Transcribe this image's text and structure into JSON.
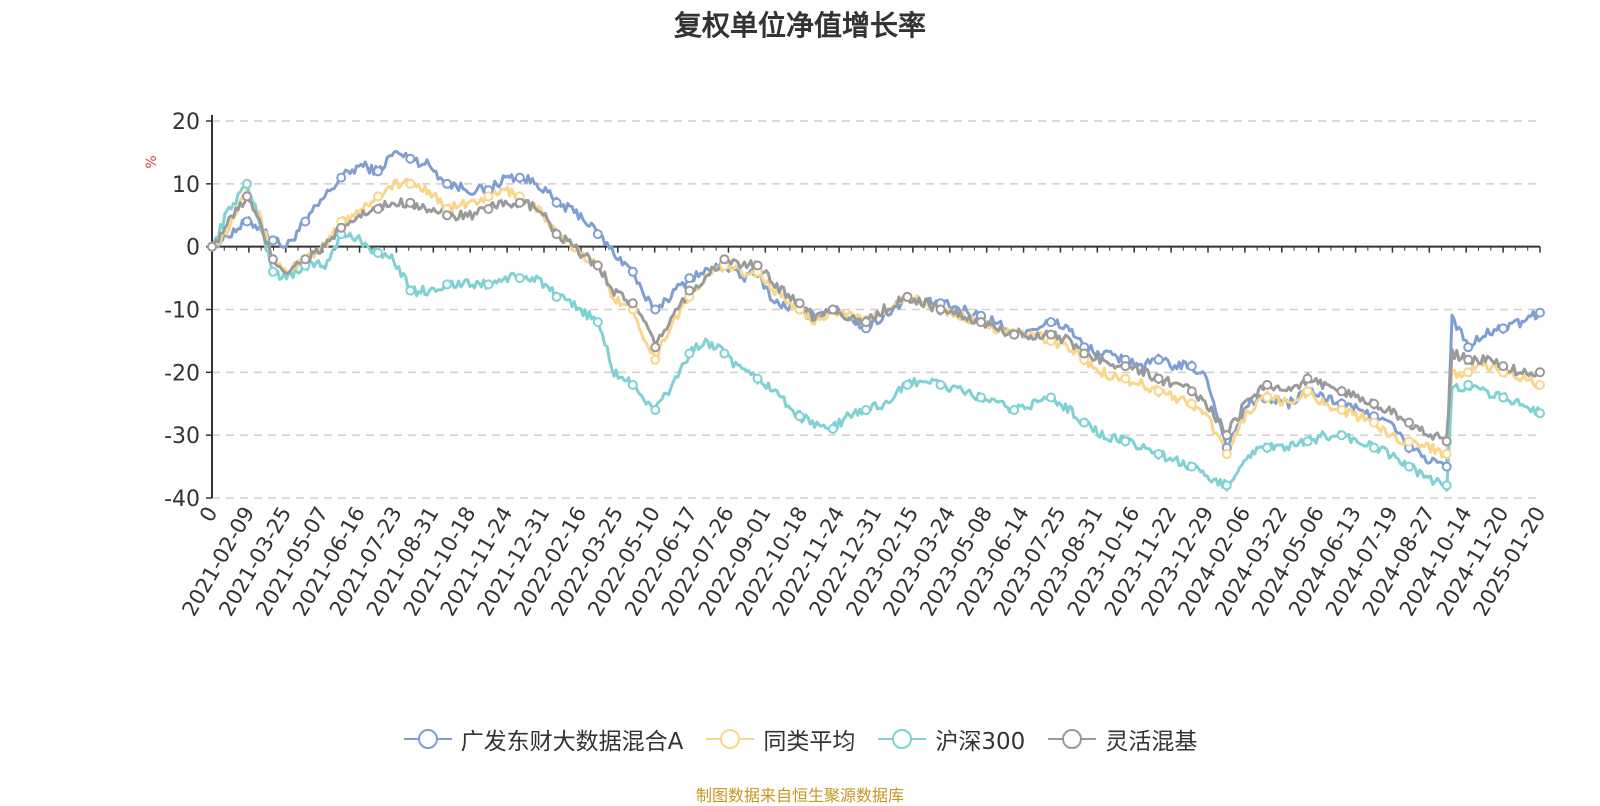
{
  "chart_data": {
    "type": "line",
    "title": "复权单位净值增长率",
    "ylabel": "%",
    "ylim": [
      -40,
      20
    ],
    "yticks": [
      20,
      10,
      0,
      -10,
      -20,
      -30,
      -40
    ],
    "xticks": [
      "0",
      "2021-02-09",
      "2021-03-25",
      "2021-05-07",
      "2021-06-16",
      "2021-07-23",
      "2021-08-31",
      "2021-10-18",
      "2021-11-24",
      "2021-12-31",
      "2022-02-16",
      "2022-03-25",
      "2022-05-10",
      "2022-06-17",
      "2022-07-26",
      "2022-09-01",
      "2022-10-18",
      "2022-11-24",
      "2022-12-31",
      "2023-02-15",
      "2023-03-24",
      "2023-05-08",
      "2023-06-14",
      "2023-07-25",
      "2023-08-31",
      "2023-10-16",
      "2023-11-22",
      "2023-12-29",
      "2024-02-06",
      "2024-03-22",
      "2024-05-06",
      "2024-06-13",
      "2024-07-19",
      "2024-08-27",
      "2024-10-14",
      "2024-11-20",
      "2025-01-20"
    ],
    "grid": true,
    "legend_position": "bottom",
    "source_note": "制图数据来自恒生聚源数据库",
    "x": [
      "2021-01-01",
      "2021-01-20",
      "2021-02-09",
      "2021-02-25",
      "2021-03-10",
      "2021-03-25",
      "2021-04-15",
      "2021-05-07",
      "2021-05-25",
      "2021-06-16",
      "2021-07-05",
      "2021-07-23",
      "2021-08-10",
      "2021-08-31",
      "2021-09-20",
      "2021-10-18",
      "2021-11-05",
      "2021-11-24",
      "2021-12-10",
      "2021-12-31",
      "2022-01-20",
      "2022-02-16",
      "2022-03-07",
      "2022-03-25",
      "2022-04-15",
      "2022-04-27",
      "2022-05-10",
      "2022-05-25",
      "2022-06-17",
      "2022-07-05",
      "2022-07-26",
      "2022-08-15",
      "2022-09-01",
      "2022-09-20",
      "2022-10-18",
      "2022-11-01",
      "2022-11-24",
      "2022-12-10",
      "2022-12-31",
      "2023-01-20",
      "2023-02-15",
      "2023-03-05",
      "2023-03-24",
      "2023-04-15",
      "2023-05-08",
      "2023-05-25",
      "2023-06-14",
      "2023-07-05",
      "2023-07-25",
      "2023-08-15",
      "2023-08-31",
      "2023-09-20",
      "2023-10-16",
      "2023-11-05",
      "2023-11-22",
      "2023-12-10",
      "2023-12-29",
      "2024-01-15",
      "2024-02-06",
      "2024-03-01",
      "2024-03-22",
      "2024-04-15",
      "2024-05-06",
      "2024-05-25",
      "2024-06-13",
      "2024-07-01",
      "2024-07-19",
      "2024-08-05",
      "2024-08-27",
      "2024-09-20",
      "2024-10-08",
      "2024-10-14",
      "2024-11-01",
      "2024-11-20",
      "2024-12-10",
      "2024-12-31",
      "2025-01-20"
    ],
    "series": [
      {
        "name": "广发东财大数据混合A",
        "color": "#7f9fd3",
        "values": [
          0,
          2,
          4,
          3,
          1,
          0,
          4,
          8,
          11,
          13,
          12,
          15,
          14,
          13,
          10,
          9,
          9,
          11,
          11,
          10,
          7,
          5,
          2,
          -1,
          -4,
          -8,
          -10,
          -8,
          -5,
          -4,
          -3,
          -5,
          -4,
          -9,
          -10,
          -11,
          -10,
          -11,
          -13,
          -11,
          -8,
          -9,
          -9,
          -10,
          -11,
          -12,
          -14,
          -13,
          -12,
          -13,
          -16,
          -17,
          -18,
          -19,
          -18,
          -19,
          -19,
          -21,
          -32,
          -25,
          -24,
          -25,
          -23,
          -24,
          -25,
          -26,
          -27,
          -28,
          -32,
          -34,
          -35,
          -11,
          -16,
          -14,
          -13,
          -12,
          -10.5
        ]
      },
      {
        "name": "同类平均",
        "color": "#fbd58a",
        "values": [
          0,
          3,
          10,
          4,
          -2,
          -4,
          -2,
          0,
          4,
          6,
          8,
          10,
          10,
          9,
          6,
          7,
          8,
          9,
          8,
          6,
          2,
          -1,
          -3,
          -8,
          -10,
          -14,
          -18,
          -13,
          -8,
          -5,
          -3,
          -4,
          -4,
          -7,
          -10,
          -12,
          -10,
          -11,
          -12,
          -10,
          -8,
          -9,
          -10,
          -11,
          -12,
          -13,
          -14,
          -14,
          -15,
          -16,
          -18,
          -20,
          -21,
          -22,
          -23,
          -24,
          -25,
          -27,
          -33,
          -26,
          -24,
          -25,
          -23,
          -25,
          -26,
          -27,
          -28,
          -30,
          -31,
          -32,
          -33,
          -20,
          -20,
          -19,
          -20,
          -21,
          -22
        ]
      },
      {
        "name": "沪深300",
        "color": "#7fd1d4",
        "values": [
          0,
          6,
          10,
          3,
          -4,
          -5,
          -3,
          -3,
          2,
          1,
          -1,
          -2,
          -7,
          -7,
          -6,
          -6,
          -6,
          -5,
          -5,
          -5,
          -8,
          -10,
          -12,
          -20,
          -22,
          -24,
          -26,
          -23,
          -17,
          -15,
          -17,
          -20,
          -21,
          -23,
          -27,
          -28,
          -29,
          -27,
          -26,
          -25,
          -22,
          -21,
          -22,
          -23,
          -24,
          -25,
          -26,
          -25,
          -24,
          -26,
          -28,
          -30,
          -31,
          -32,
          -33,
          -34,
          -35,
          -37,
          -38,
          -33,
          -32,
          -32,
          -31,
          -30,
          -30,
          -31,
          -32,
          -33,
          -35,
          -37,
          -38,
          -23,
          -22,
          -23,
          -24,
          -25,
          -26.5
        ]
      },
      {
        "name": "灵活混基",
        "color": "#9a9a9a",
        "values": [
          0,
          4,
          8,
          3,
          -2,
          -4,
          -2,
          0,
          3,
          5,
          6,
          7,
          7,
          6,
          5,
          5,
          6,
          7,
          7,
          6,
          2,
          -1,
          -3,
          -7,
          -9,
          -12,
          -16,
          -12,
          -7,
          -5,
          -2,
          -3,
          -3,
          -6,
          -9,
          -11,
          -10,
          -11,
          -12,
          -10,
          -8,
          -9,
          -10,
          -11,
          -12,
          -13,
          -14,
          -14,
          -14,
          -15,
          -17,
          -18,
          -19,
          -20,
          -21,
          -22,
          -23,
          -25,
          -30,
          -24,
          -22,
          -23,
          -21,
          -22,
          -23,
          -24,
          -25,
          -26,
          -28,
          -30,
          -31,
          -17,
          -18,
          -18,
          -19,
          -20,
          -20
        ]
      }
    ]
  }
}
